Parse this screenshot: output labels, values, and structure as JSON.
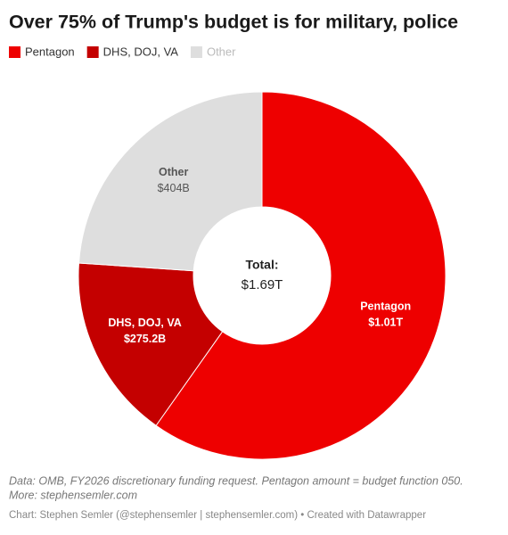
{
  "chart_data": {
    "type": "donut",
    "title": "Over 75% of Trump's budget is for military, police",
    "categories": [
      "Pentagon",
      "DHS, DOJ, VA",
      "Other"
    ],
    "values": [
      1010,
      275.2,
      404
    ],
    "value_labels": [
      "$1.01T",
      "$275.2B",
      "$404B"
    ],
    "colors": [
      "#ee0000",
      "#c40000",
      "#dedede"
    ],
    "label_colors": [
      "#ffffff",
      "#ffffff",
      "#555555"
    ],
    "legend_text_colors": [
      "#333333",
      "#333333",
      "#bbbbbb"
    ],
    "total": {
      "label": "Total:",
      "value": 1690,
      "value_label": "$1.69T"
    },
    "notes": [
      "Data: OMB, FY2026 discretionary funding request. Pentagon amount = budget function 050.",
      "More: stephensemler.com"
    ],
    "credit": "Chart: Stephen Semler (@stephensemler | stephensemler.com) • Created with Datawrapper"
  }
}
